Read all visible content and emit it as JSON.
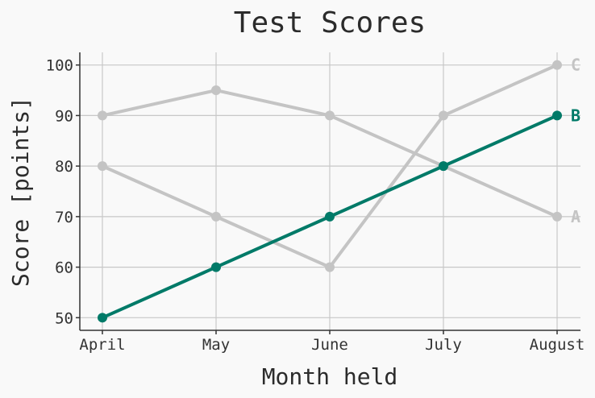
{
  "chart_data": {
    "type": "line",
    "title": "Test Scores",
    "xlabel": "Month held",
    "ylabel": "Score [points]",
    "categories": [
      "April",
      "May",
      "June",
      "July",
      "August"
    ],
    "yticks": [
      50,
      60,
      70,
      80,
      90,
      100
    ],
    "ylim": [
      47.5,
      102.5
    ],
    "grid": true,
    "series": [
      {
        "name": "A",
        "values": [
          90,
          95,
          90,
          80,
          70
        ],
        "color": "#c4c4c4",
        "highlight": false
      },
      {
        "name": "C",
        "values": [
          80,
          70,
          60,
          90,
          100
        ],
        "color": "#c4c4c4",
        "highlight": false
      },
      {
        "name": "B",
        "values": [
          50,
          60,
          70,
          80,
          90
        ],
        "color": "#007a68",
        "highlight": true
      }
    ]
  }
}
